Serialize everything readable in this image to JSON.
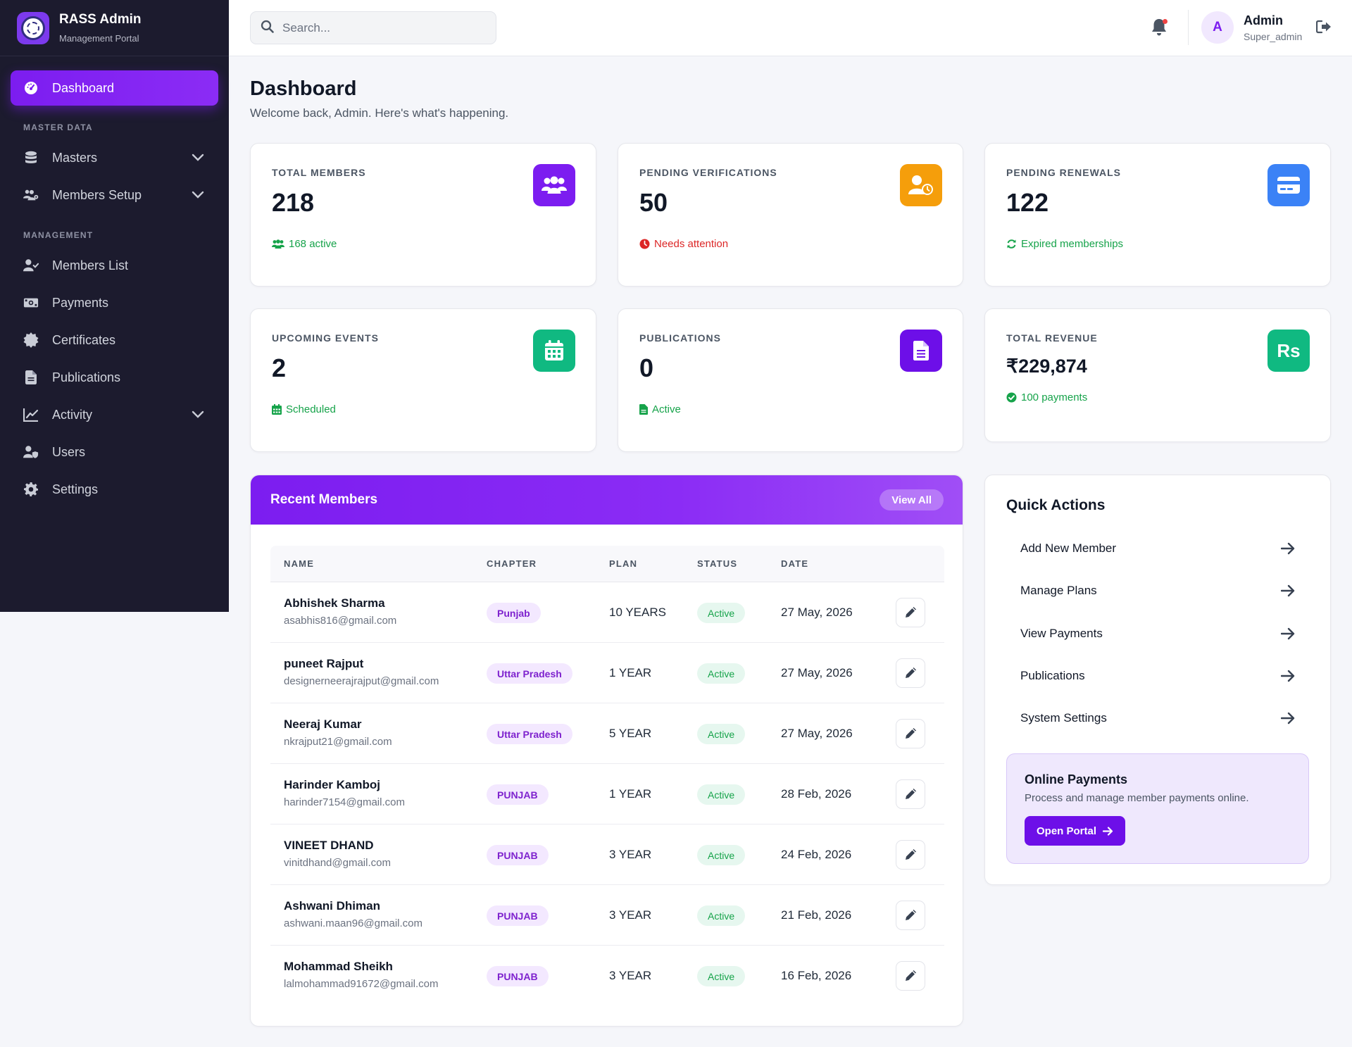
{
  "brand": {
    "title": "RASS Admin",
    "subtitle": "Management Portal"
  },
  "sidebar": {
    "sections": {
      "master": "MASTER DATA",
      "management": "MANAGEMENT"
    },
    "items": [
      {
        "label": "Dashboard",
        "icon": "gauge-icon",
        "active": true
      },
      {
        "label": "Masters",
        "icon": "database-icon",
        "expandable": true
      },
      {
        "label": "Members Setup",
        "icon": "users-cog-icon",
        "expandable": true
      },
      {
        "label": "Members List",
        "icon": "user-check-icon"
      },
      {
        "label": "Payments",
        "icon": "money-bill-icon"
      },
      {
        "label": "Certificates",
        "icon": "certificate-icon"
      },
      {
        "label": "Publications",
        "icon": "file-icon"
      },
      {
        "label": "Activity",
        "icon": "chart-line-icon",
        "expandable": true
      },
      {
        "label": "Users",
        "icon": "user-shield-icon"
      },
      {
        "label": "Settings",
        "icon": "gear-icon"
      }
    ]
  },
  "topbar": {
    "search_placeholder": "Search...",
    "user": {
      "initial": "A",
      "name": "Admin",
      "role": "Super_admin"
    }
  },
  "page": {
    "title": "Dashboard",
    "subtitle": "Welcome back, Admin. Here's what's happening."
  },
  "stats": [
    {
      "label": "TOTAL MEMBERS",
      "value": "218",
      "foot": "168 active",
      "foot_color": "#16a34a",
      "icon": "users-icon",
      "icon_bg": "#7c1df0"
    },
    {
      "label": "PENDING VERIFICATIONS",
      "value": "50",
      "foot": "Needs attention",
      "foot_color": "#dc2626",
      "icon": "user-clock-icon",
      "icon_bg": "#f59e0b"
    },
    {
      "label": "PENDING RENEWALS",
      "value": "122",
      "foot": "Expired memberships",
      "foot_color": "#16a34a",
      "icon": "credit-card-icon",
      "icon_bg": "#3b82f6"
    },
    {
      "label": "UPCOMING EVENTS",
      "value": "2",
      "foot": "Scheduled",
      "foot_color": "#16a34a",
      "icon": "calendar-icon",
      "icon_bg": "#10b981"
    },
    {
      "label": "PUBLICATIONS",
      "value": "0",
      "foot": "Active",
      "foot_color": "#16a34a",
      "icon": "document-icon",
      "icon_bg": "#6d0fe8"
    },
    {
      "label": "TOTAL REVENUE",
      "value": "₹229,874",
      "foot": "100 payments",
      "foot_color": "#16a34a",
      "icon": "rupee-icon",
      "icon_bg": "#10b981",
      "icon_text": "Rs"
    }
  ],
  "recent_members": {
    "title": "Recent Members",
    "view_all": "View All",
    "columns": [
      "NAME",
      "CHAPTER",
      "PLAN",
      "STATUS",
      "DATE"
    ],
    "rows": [
      {
        "name": "Abhishek Sharma",
        "email": "asabhis816@gmail.com",
        "chapter": "Punjab",
        "plan": "10 YEARS",
        "status": "Active",
        "date": "27 May, 2026"
      },
      {
        "name": "puneet Rajput",
        "email": "designerneerajrajput@gmail.com",
        "chapter": "Uttar Pradesh",
        "plan": "1 YEAR",
        "status": "Active",
        "date": "27 May, 2026"
      },
      {
        "name": "Neeraj Kumar",
        "email": "nkrajput21@gmail.com",
        "chapter": "Uttar Pradesh",
        "plan": "5 YEAR",
        "status": "Active",
        "date": "27 May, 2026"
      },
      {
        "name": "Harinder Kamboj",
        "email": "harinder7154@gmail.com",
        "chapter": "PUNJAB",
        "plan": "1 YEAR",
        "status": "Active",
        "date": "28 Feb, 2026"
      },
      {
        "name": "VINEET DHAND",
        "email": "vinitdhand@gmail.com",
        "chapter": "PUNJAB",
        "plan": "3 YEAR",
        "status": "Active",
        "date": "24 Feb, 2026"
      },
      {
        "name": "Ashwani Dhiman",
        "email": "ashwani.maan96@gmail.com",
        "chapter": "PUNJAB",
        "plan": "3 YEAR",
        "status": "Active",
        "date": "21 Feb, 2026"
      },
      {
        "name": "Mohammad Sheikh",
        "email": "lalmohammad91672@gmail.com",
        "chapter": "PUNJAB",
        "plan": "3 YEAR",
        "status": "Active",
        "date": "16 Feb, 2026"
      }
    ]
  },
  "quick_actions": {
    "title": "Quick Actions",
    "items": [
      "Add New Member",
      "Manage Plans",
      "View Payments",
      "Publications",
      "System Settings"
    ],
    "online_payments": {
      "title": "Online Payments",
      "text": "Process and manage member payments online.",
      "button": "Open Portal"
    }
  },
  "colors": {
    "accent": "#7c1df0",
    "sidebar_bg": "#1c1b2e",
    "success": "#16a34a",
    "danger": "#dc2626"
  }
}
